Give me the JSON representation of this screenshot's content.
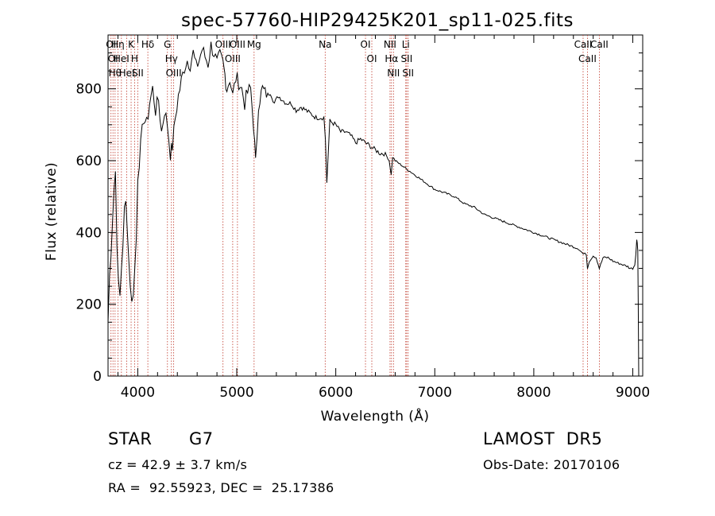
{
  "chart_data": {
    "type": "line",
    "title": "spec-57760-HIP29425K201_sp11-025.fits",
    "xlabel": "Wavelength (Å)",
    "ylabel": "Flux (relative)",
    "xlim": [
      3700,
      9100
    ],
    "ylim": [
      0,
      950
    ],
    "xticks": [
      4000,
      5000,
      6000,
      7000,
      8000,
      9000
    ],
    "yticks": [
      0,
      200,
      400,
      600,
      800
    ],
    "grid": false,
    "series": [
      {
        "x": [
          3700,
          3715,
          3730,
          3745,
          3760,
          3775,
          3790,
          3805,
          3820,
          3835,
          3850,
          3865,
          3880,
          3895,
          3910,
          3925,
          3940,
          3955,
          3970,
          3985,
          4000,
          4030,
          4060,
          4090,
          4120,
          4150,
          4180,
          4210,
          4240,
          4270,
          4300,
          4330,
          4350,
          4380,
          4410,
          4440,
          4470,
          4500,
          4530,
          4560,
          4590,
          4620,
          4650,
          4680,
          4710,
          4740,
          4770,
          4800,
          4830,
          4860,
          4880,
          4900,
          4930,
          4960,
          4990,
          5020,
          5050,
          5080,
          5110,
          5140,
          5170,
          5190,
          5220,
          5260,
          5300,
          5340,
          5380,
          5420,
          5460,
          5500,
          5550,
          5600,
          5650,
          5700,
          5750,
          5800,
          5850,
          5880,
          5895,
          5910,
          5940,
          6000,
          6050,
          6100,
          6150,
          6200,
          6250,
          6300,
          6350,
          6400,
          6450,
          6500,
          6540,
          6560,
          6575,
          6600,
          6650,
          6700,
          6750,
          6800,
          6900,
          7000,
          7100,
          7200,
          7300,
          7400,
          7500,
          7600,
          7700,
          7800,
          7900,
          8000,
          8100,
          8200,
          8300,
          8400,
          8450,
          8500,
          8530,
          8542,
          8560,
          8600,
          8630,
          8662,
          8700,
          8750,
          8800,
          8850,
          8900,
          8950,
          8970,
          9000,
          9020,
          9030,
          9040,
          9045,
          9050,
          9055,
          9060
        ],
        "y": [
          150,
          280,
          350,
          440,
          520,
          570,
          380,
          250,
          220,
          300,
          370,
          460,
          480,
          420,
          320,
          260,
          200,
          240,
          300,
          380,
          560,
          640,
          720,
          700,
          760,
          800,
          740,
          770,
          680,
          740,
          700,
          620,
          640,
          720,
          780,
          820,
          860,
          880,
          870,
          900,
          860,
          880,
          910,
          890,
          870,
          920,
          900,
          870,
          890,
          870,
          840,
          800,
          830,
          780,
          830,
          820,
          800,
          760,
          790,
          800,
          700,
          590,
          760,
          800,
          780,
          790,
          760,
          780,
          770,
          760,
          760,
          740,
          750,
          740,
          730,
          720,
          720,
          720,
          660,
          540,
          710,
          700,
          680,
          680,
          670,
          650,
          660,
          650,
          640,
          630,
          620,
          620,
          600,
          560,
          610,
          600,
          590,
          580,
          570,
          560,
          540,
          520,
          510,
          500,
          480,
          470,
          450,
          440,
          430,
          420,
          410,
          400,
          390,
          380,
          370,
          360,
          355,
          340,
          340,
          300,
          320,
          335,
          330,
          300,
          330,
          330,
          320,
          315,
          310,
          305,
          300,
          300,
          310,
          340,
          380,
          370,
          350,
          200,
          0
        ]
      }
    ],
    "lines": [
      {
        "x": 3730,
        "label": "OI"
      },
      {
        "x": 3750,
        "label": "OI"
      },
      {
        "x": 3771,
        "label": "Hθ"
      },
      {
        "x": 3800,
        "label": "Hη"
      },
      {
        "x": 3835,
        "label": "HeI"
      },
      {
        "x": 3889,
        "label": "HeI"
      },
      {
        "x": 3933,
        "label": "K"
      },
      {
        "x": 3968,
        "label": "H"
      },
      {
        "x": 4000,
        "label": "SII"
      },
      {
        "x": 4102,
        "label": "Hδ"
      },
      {
        "x": 4300,
        "label": "G"
      },
      {
        "x": 4340,
        "label": "Hγ"
      },
      {
        "x": 4363,
        "label": "OIII"
      },
      {
        "x": 4861,
        "label": "OIII"
      },
      {
        "x": 4959,
        "label": "OIII"
      },
      {
        "x": 5007,
        "label": "OIII"
      },
      {
        "x": 5175,
        "label": "Mg"
      },
      {
        "x": 5893,
        "label": "Na"
      },
      {
        "x": 6300,
        "label": "OI"
      },
      {
        "x": 6364,
        "label": "OI"
      },
      {
        "x": 6548,
        "label": "NII"
      },
      {
        "x": 6563,
        "label": "Hα"
      },
      {
        "x": 6583,
        "label": "NII"
      },
      {
        "x": 6707,
        "label": "Li"
      },
      {
        "x": 6716,
        "label": "SII"
      },
      {
        "x": 6731,
        "label": "SII"
      },
      {
        "x": 8498,
        "label": "CaII"
      },
      {
        "x": 8542,
        "label": "CaII"
      },
      {
        "x": 8662,
        "label": "CaII"
      }
    ]
  },
  "info": {
    "class": "STAR",
    "subclass": "G7",
    "survey": "LAMOST  DR5",
    "cz": "cz = 42.9 ± 3.7 km/s",
    "obsdate": "Obs-Date: 20170106",
    "radec": "RA =  92.55923, DEC =  25.17386"
  }
}
